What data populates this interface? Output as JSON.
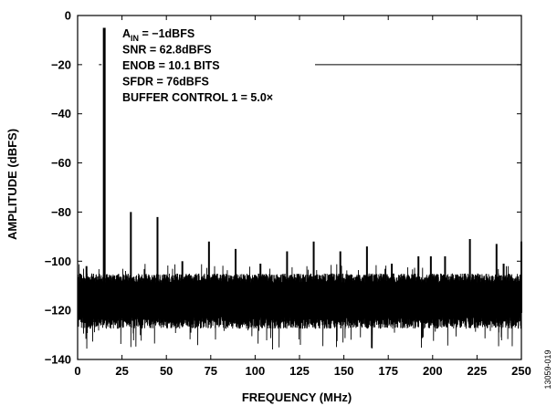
{
  "chart_data": {
    "type": "line",
    "title": "",
    "xlabel": "FREQUENCY (MHz)",
    "ylabel": "AMPLITUDE (dBFS)",
    "xlim": [
      0,
      250
    ],
    "ylim": [
      -140,
      0
    ],
    "xticks": [
      0,
      25,
      50,
      75,
      100,
      125,
      150,
      175,
      200,
      225,
      250
    ],
    "yticks": [
      0,
      -20,
      -40,
      -60,
      -80,
      -100,
      -120,
      -140
    ],
    "grid": "partial horizontal reference line at -20 dBFS",
    "legend": "none",
    "trace_color": "#000000",
    "noise_floor": {
      "typical_top_dBFS": -107,
      "typical_bottom_dBFS": -125,
      "min_dBFS": -136
    },
    "peaks": [
      {
        "freq": 15,
        "amp": -5
      },
      {
        "freq": 30,
        "amp": -80
      },
      {
        "freq": 45,
        "amp": -82
      },
      {
        "freq": 74,
        "amp": -92
      },
      {
        "freq": 89,
        "amp": -95
      },
      {
        "freq": 118,
        "amp": -96
      },
      {
        "freq": 133,
        "amp": -92
      },
      {
        "freq": 148,
        "amp": -96
      },
      {
        "freq": 163,
        "amp": -94
      },
      {
        "freq": 221,
        "amp": -91
      },
      {
        "freq": 236,
        "amp": -93
      },
      {
        "freq": 250,
        "amp": -92
      },
      {
        "freq": 5,
        "amp": -102
      },
      {
        "freq": 59,
        "amp": -100
      },
      {
        "freq": 103,
        "amp": -101
      },
      {
        "freq": 177,
        "amp": -101
      },
      {
        "freq": 192,
        "amp": -98
      },
      {
        "freq": 199,
        "amp": -98
      },
      {
        "freq": 207,
        "amp": -98
      },
      {
        "freq": 240,
        "amp": -101
      }
    ],
    "annotations": [
      {
        "main": "A",
        "sub": "IN",
        "rest": " = −1dBFS"
      },
      {
        "main": "SNR = 62.8dBFS"
      },
      {
        "main": "ENOB = 10.1 BITS"
      },
      {
        "main": "SFDR = 76dBFS"
      },
      {
        "main": "BUFFER CONTROL 1 = 5.0×"
      }
    ],
    "figure_id": "13059-019"
  }
}
